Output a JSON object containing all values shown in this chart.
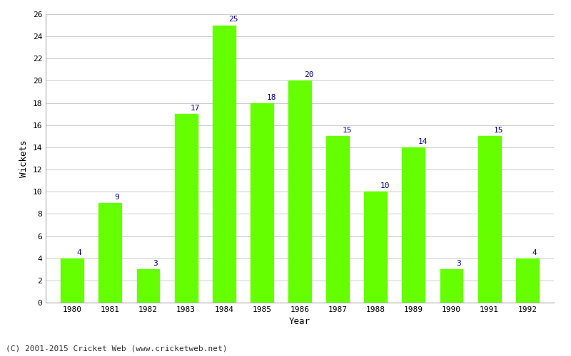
{
  "years": [
    1980,
    1981,
    1982,
    1983,
    1984,
    1985,
    1986,
    1987,
    1988,
    1989,
    1990,
    1991,
    1992
  ],
  "wickets": [
    4,
    9,
    3,
    17,
    25,
    18,
    20,
    15,
    10,
    14,
    3,
    15,
    4
  ],
  "bar_color": "#66ff00",
  "label_color": "#000099",
  "xlabel": "Year",
  "ylabel": "Wickets",
  "ylim": [
    0,
    26
  ],
  "yticks": [
    0,
    2,
    4,
    6,
    8,
    10,
    12,
    14,
    16,
    18,
    20,
    22,
    24,
    26
  ],
  "background_color": "#ffffff",
  "footer": "(C) 2001-2015 Cricket Web (www.cricketweb.net)",
  "label_fontsize": 8,
  "axis_label_fontsize": 9,
  "tick_fontsize": 8,
  "footer_fontsize": 8,
  "bar_width": 0.6
}
